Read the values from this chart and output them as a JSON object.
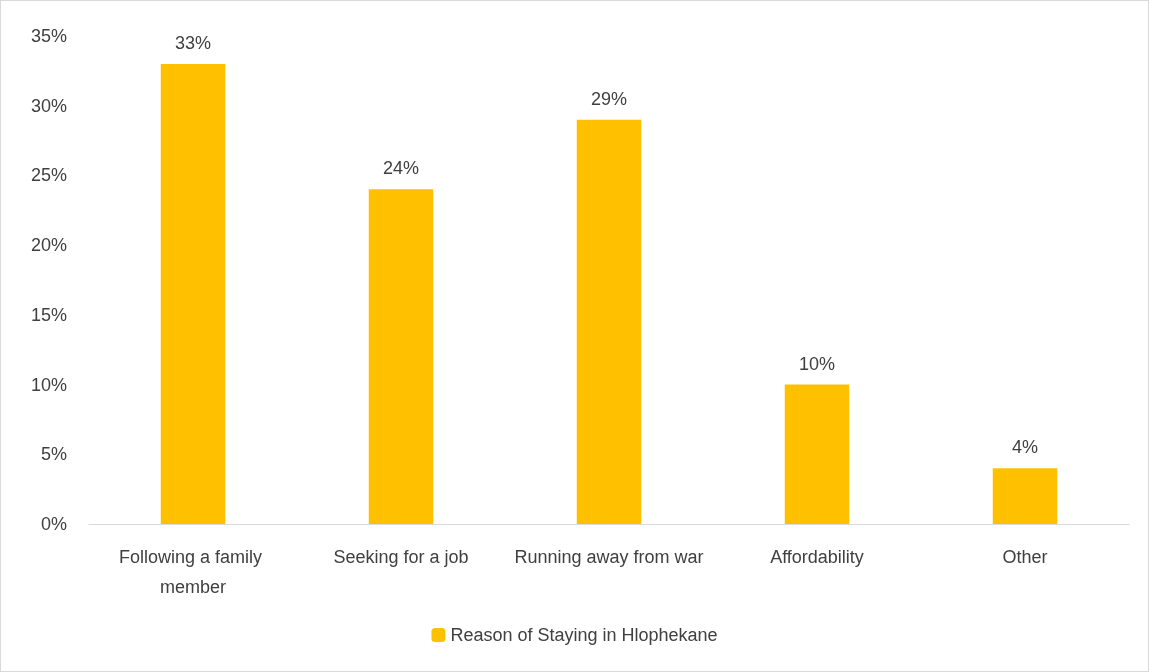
{
  "chart_data": {
    "type": "bar",
    "categories": [
      "Following a family member",
      "Seeking for a job",
      "Running away from war",
      "Affordability",
      "Other"
    ],
    "series": [
      {
        "name": "Reason of Staying in Hlophekane",
        "color": "#ffc000",
        "values": [
          33,
          24,
          29,
          10,
          4
        ],
        "value_labels": [
          "33%",
          "24%",
          "29%",
          "10%",
          "4%"
        ]
      }
    ],
    "ylim": [
      0,
      35
    ],
    "yticks": [
      {
        "value": 0,
        "label": "0%"
      },
      {
        "value": 5,
        "label": "5%"
      },
      {
        "value": 10,
        "label": "10%"
      },
      {
        "value": 15,
        "label": "15%"
      },
      {
        "value": 20,
        "label": "20%"
      },
      {
        "value": 25,
        "label": "25%"
      },
      {
        "value": 30,
        "label": "30%"
      },
      {
        "value": 35,
        "label": "35%"
      }
    ],
    "grid": false,
    "legend": "bottom"
  }
}
